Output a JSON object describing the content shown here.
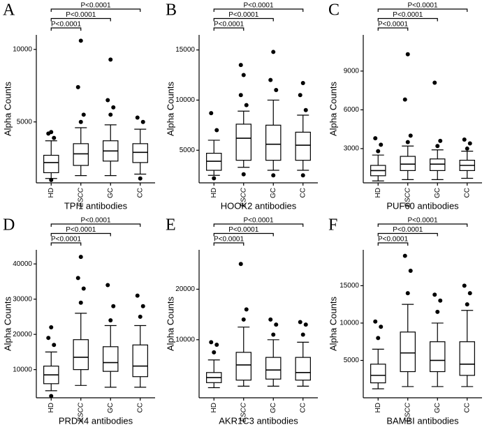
{
  "chart_data": [
    {
      "type": "box",
      "panel": "A",
      "xlabel": "TPI1 antibodies",
      "ylabel": "Alpha Counts",
      "categories": [
        "HD",
        "ESCC",
        "GC",
        "CC"
      ],
      "boxes": [
        {
          "whisker_low": 1100,
          "q1": 1500,
          "median": 2200,
          "q3": 2700,
          "whisker_high": 3700,
          "outliers": [
            1000,
            3900,
            4200,
            4300
          ]
        },
        {
          "whisker_low": 1300,
          "q1": 2000,
          "median": 2800,
          "q3": 3500,
          "whisker_high": 4600,
          "outliers": [
            5000,
            5500,
            7400,
            10600
          ]
        },
        {
          "whisker_low": 1300,
          "q1": 2300,
          "median": 3000,
          "q3": 3700,
          "whisker_high": 4800,
          "outliers": [
            5500,
            6000,
            6500,
            9300
          ]
        },
        {
          "whisker_low": 1400,
          "q1": 2200,
          "median": 2900,
          "q3": 3500,
          "whisker_high": 4500,
          "outliers": [
            1100,
            5000,
            5300
          ]
        }
      ],
      "comparisons": [
        {
          "label": "P<0.0001",
          "groups": [
            "HD",
            "ESCC"
          ]
        },
        {
          "label": "P<0.0001",
          "groups": [
            "HD",
            "GC"
          ]
        },
        {
          "label": "P<0.0001",
          "groups": [
            "HD",
            "CC"
          ]
        }
      ],
      "ylim": [
        800,
        11000
      ],
      "yticks": [
        5000,
        10000
      ]
    },
    {
      "type": "box",
      "panel": "B",
      "xlabel": "HOOK2 antibodies",
      "ylabel": "Alpha Counts",
      "categories": [
        "HD",
        "ESCC",
        "GC",
        "CC"
      ],
      "boxes": [
        {
          "whisker_low": 2500,
          "q1": 3000,
          "median": 3900,
          "q3": 4700,
          "whisker_high": 6000,
          "outliers": [
            2200,
            7000,
            8700
          ]
        },
        {
          "whisker_low": 3300,
          "q1": 4000,
          "median": 6200,
          "q3": 7600,
          "whisker_high": 8900,
          "outliers": [
            2600,
            9500,
            10500,
            12500,
            13500
          ]
        },
        {
          "whisker_low": 3000,
          "q1": 4000,
          "median": 5600,
          "q3": 7500,
          "whisker_high": 10000,
          "outliers": [
            2500,
            11000,
            12000,
            14800
          ]
        },
        {
          "whisker_low": 3000,
          "q1": 4000,
          "median": 5500,
          "q3": 6800,
          "whisker_high": 8500,
          "outliers": [
            2500,
            9000,
            10500,
            11700
          ]
        }
      ],
      "comparisons": [
        {
          "label": "P<0.0001",
          "groups": [
            "HD",
            "ESCC"
          ]
        },
        {
          "label": "P<0.0001",
          "groups": [
            "HD",
            "GC"
          ]
        },
        {
          "label": "P<0.0001",
          "groups": [
            "HD",
            "CC"
          ]
        }
      ],
      "ylim": [
        1750,
        16500
      ],
      "yticks": [
        5000,
        10000,
        15000
      ]
    },
    {
      "type": "box",
      "panel": "C",
      "xlabel": "PUF60 antibodies",
      "ylabel": "Alpha Counts",
      "categories": [
        "HD",
        "ESCC",
        "GC",
        "CC"
      ],
      "boxes": [
        {
          "whisker_low": 500,
          "q1": 900,
          "median": 1300,
          "q3": 1700,
          "whisker_high": 2500,
          "outliers": [
            2800,
            3300,
            3800
          ]
        },
        {
          "whisker_low": 600,
          "q1": 1300,
          "median": 1800,
          "q3": 2400,
          "whisker_high": 3200,
          "outliers": [
            3500,
            4000,
            6800,
            10300
          ]
        },
        {
          "whisker_low": 600,
          "q1": 1300,
          "median": 1800,
          "q3": 2200,
          "whisker_high": 2900,
          "outliers": [
            3200,
            3600,
            8100
          ]
        },
        {
          "whisker_low": 700,
          "q1": 1300,
          "median": 1700,
          "q3": 2100,
          "whisker_high": 2800,
          "outliers": [
            3000,
            3400,
            3700
          ]
        }
      ],
      "comparisons": [
        {
          "label": "P<0.0001",
          "groups": [
            "HD",
            "ESCC"
          ]
        },
        {
          "label": "P<0.0001",
          "groups": [
            "HD",
            "GC"
          ]
        },
        {
          "label": "P<0.0001",
          "groups": [
            "HD",
            "CC"
          ]
        }
      ],
      "ylim": [
        350,
        11800
      ],
      "yticks": [
        3000,
        6000,
        9000
      ]
    },
    {
      "type": "box",
      "panel": "D",
      "xlabel": "PRDX4 antibodies",
      "ylabel": "Alpha Counts",
      "categories": [
        "HD",
        "ESCC",
        "GC",
        "CC"
      ],
      "boxes": [
        {
          "whisker_low": 4000,
          "q1": 6000,
          "median": 8500,
          "q3": 11000,
          "whisker_high": 15000,
          "outliers": [
            2500,
            17000,
            19000,
            22000
          ]
        },
        {
          "whisker_low": 5500,
          "q1": 10000,
          "median": 13500,
          "q3": 18500,
          "whisker_high": 26000,
          "outliers": [
            29000,
            33000,
            36000,
            42000
          ]
        },
        {
          "whisker_low": 5000,
          "q1": 9500,
          "median": 12000,
          "q3": 16500,
          "whisker_high": 22500,
          "outliers": [
            24000,
            28000,
            34000
          ]
        },
        {
          "whisker_low": 5000,
          "q1": 8000,
          "median": 11000,
          "q3": 17000,
          "whisker_high": 22500,
          "outliers": [
            25000,
            28000,
            31000
          ]
        }
      ],
      "comparisons": [
        {
          "label": "P<0.0001",
          "groups": [
            "HD",
            "ESCC"
          ]
        },
        {
          "label": "P<0.0001",
          "groups": [
            "HD",
            "GC"
          ]
        },
        {
          "label": "P<0.0001",
          "groups": [
            "HD",
            "CC"
          ]
        }
      ],
      "ylim": [
        2000,
        44000
      ],
      "yticks": [
        10000,
        20000,
        30000,
        40000
      ]
    },
    {
      "type": "box",
      "panel": "E",
      "xlabel": "AKR1C3 antibodies",
      "ylabel": "Alpha Counts",
      "categories": [
        "HD",
        "ESCC",
        "GC",
        "CC"
      ],
      "boxes": [
        {
          "whisker_low": 500,
          "q1": 1500,
          "median": 2500,
          "q3": 3500,
          "whisker_high": 6000,
          "outliers": [
            7500,
            9000,
            9500
          ]
        },
        {
          "whisker_low": 800,
          "q1": 2000,
          "median": 5000,
          "q3": 7500,
          "whisker_high": 12500,
          "outliers": [
            14000,
            16000,
            25000
          ]
        },
        {
          "whisker_low": 800,
          "q1": 2200,
          "median": 4000,
          "q3": 6500,
          "whisker_high": 10000,
          "outliers": [
            11000,
            13000,
            14000
          ]
        },
        {
          "whisker_low": 800,
          "q1": 2000,
          "median": 3500,
          "q3": 6500,
          "whisker_high": 9500,
          "outliers": [
            11000,
            13000,
            13500
          ]
        }
      ],
      "comparisons": [
        {
          "label": "P<0.0001",
          "groups": [
            "HD",
            "ESCC"
          ]
        },
        {
          "label": "P<0.0001",
          "groups": [
            "HD",
            "GC"
          ]
        },
        {
          "label": "P<0.0001",
          "groups": [
            "HD",
            "CC"
          ]
        }
      ],
      "ylim": [
        -1500,
        27800
      ],
      "yticks": [
        10000,
        20000
      ]
    },
    {
      "type": "box",
      "panel": "F",
      "xlabel": "BAMBI antibodies",
      "ylabel": "Alpha Counts",
      "categories": [
        "HD",
        "ESCC",
        "GC",
        "CC"
      ],
      "boxes": [
        {
          "whisker_low": 1200,
          "q1": 2000,
          "median": 3000,
          "q3": 4500,
          "whisker_high": 6500,
          "outliers": [
            8000,
            9500,
            10200
          ]
        },
        {
          "whisker_low": 1500,
          "q1": 3500,
          "median": 6000,
          "q3": 8800,
          "whisker_high": 12500,
          "outliers": [
            14000,
            17000,
            19000
          ]
        },
        {
          "whisker_low": 1500,
          "q1": 3500,
          "median": 5000,
          "q3": 7500,
          "whisker_high": 10000,
          "outliers": [
            11500,
            13000,
            13800
          ]
        },
        {
          "whisker_low": 1500,
          "q1": 3000,
          "median": 4500,
          "q3": 7500,
          "whisker_high": 11700,
          "outliers": [
            12500,
            14000,
            15000
          ]
        }
      ],
      "comparisons": [
        {
          "label": "P<0.0001",
          "groups": [
            "HD",
            "ESCC"
          ]
        },
        {
          "label": "P<0.0001",
          "groups": [
            "HD",
            "GC"
          ]
        },
        {
          "label": "P<0.0001",
          "groups": [
            "HD",
            "CC"
          ]
        }
      ],
      "ylim": [
        0,
        19800
      ],
      "yticks": [
        5000,
        10000,
        15000
      ]
    }
  ]
}
